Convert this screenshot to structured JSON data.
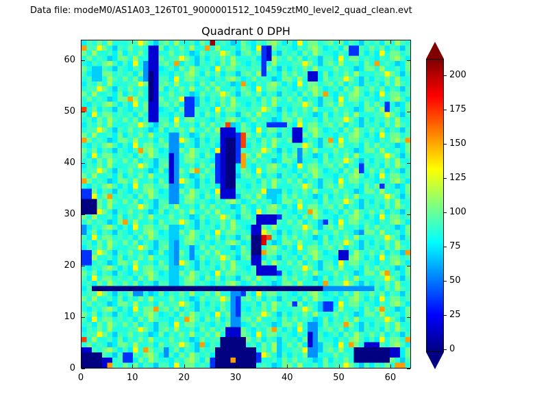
{
  "figure": {
    "data_file_label": "Data file: modeM0/AS1A03_126T01_9000001512_10459cztM0_level2_quad_clean.evt",
    "title": "Quadrant 0 DPH"
  },
  "axes": {
    "x_ticks": [
      0,
      10,
      20,
      30,
      40,
      50,
      60
    ],
    "y_ticks": [
      0,
      10,
      20,
      30,
      40,
      50,
      60
    ],
    "x_range": [
      0,
      64
    ],
    "y_range": [
      0,
      64
    ],
    "grid": false
  },
  "colorbar": {
    "ticks": [
      0,
      25,
      50,
      75,
      100,
      125,
      150,
      175,
      200
    ],
    "vmin": -2,
    "vmax": 212,
    "colormap": "jet",
    "extend": "both",
    "position": "right"
  },
  "chart_data": {
    "type": "heatmap",
    "title": "Quadrant 0 DPH",
    "xlabel": "",
    "ylabel": "",
    "x_range": [
      0,
      64
    ],
    "y_range": [
      0,
      64
    ],
    "grid_size": 64,
    "colormap": "jet",
    "clim": [
      -2,
      212
    ],
    "orientation": "rows indexed by y from bottom (y=0) to top (y=63); chars map to counts via value_key",
    "value_key": {
      "0": -5,
      "1": 15,
      "2": 35,
      "3": 55,
      "4": 68,
      "5": 76,
      "6": 85,
      "7": 93,
      "8": 102,
      "9": 112,
      "a": 132,
      "b": 152,
      "c": 172,
      "d": 192,
      "e": 205,
      "f": 212
    },
    "row_rule": "background texture: row y uses base_rows[y % 8], then patches overwrite cells",
    "base_rows": [
      "675869768685764775a68867657689756867645886966758677a864757686966",
      "75a68867675869766576897586857647869667586867645857686966677a8647",
      "86857647657689756758697675a68867677a8647576869666867645886966758",
      "6576897575a68867868576476758697657686966677a86478696675868676458",
      "6867645886966758677a864757686966675869768685764775a6886765768975",
      "869667585768696668676458677a864786857647675869766576897575a68867",
      "677a864768676458576869668696675875a68867657689756758697686857647",
      "57686966677a864786966758686764586576897575a688678685764767586976"
    ],
    "patches": [
      {
        "x": 13,
        "y": 48,
        "w": 2,
        "h": 15,
        "c": "1"
      },
      {
        "x": 13,
        "y": 52,
        "w": 1,
        "h": 6,
        "c": "0"
      },
      {
        "x": 12,
        "y": 56,
        "w": 1,
        "h": 4,
        "c": "3"
      },
      {
        "x": 20,
        "y": 49,
        "w": 2,
        "h": 4,
        "c": "2"
      },
      {
        "x": 35,
        "y": 57,
        "w": 1,
        "h": 6,
        "c": "2"
      },
      {
        "x": 36,
        "y": 60,
        "w": 1,
        "h": 3,
        "c": "1"
      },
      {
        "x": 25,
        "y": 63,
        "w": 1,
        "h": 1,
        "c": "e"
      },
      {
        "x": 24,
        "y": 62,
        "w": 1,
        "h": 1,
        "c": "b"
      },
      {
        "x": 44,
        "y": 56,
        "w": 2,
        "h": 2,
        "c": "1"
      },
      {
        "x": 52,
        "y": 61,
        "w": 2,
        "h": 2,
        "c": "2"
      },
      {
        "x": 59,
        "y": 50,
        "w": 1,
        "h": 2,
        "c": "2"
      },
      {
        "x": 18,
        "y": 59,
        "w": 1,
        "h": 1,
        "c": "b"
      },
      {
        "x": 31,
        "y": 55,
        "w": 1,
        "h": 1,
        "c": "b"
      },
      {
        "x": 47,
        "y": 53,
        "w": 1,
        "h": 1,
        "c": "b"
      },
      {
        "x": 57,
        "y": 59,
        "w": 1,
        "h": 1,
        "c": "b"
      },
      {
        "x": 9,
        "y": 52,
        "w": 1,
        "h": 1,
        "c": "b"
      },
      {
        "x": 2,
        "y": 56,
        "w": 2,
        "h": 3,
        "c": "4"
      },
      {
        "x": 0,
        "y": 62,
        "w": 1,
        "h": 1,
        "c": "b"
      },
      {
        "x": 0,
        "y": 50,
        "w": 1,
        "h": 1,
        "c": "c"
      },
      {
        "x": 0,
        "y": 44,
        "w": 1,
        "h": 1,
        "c": "b"
      },
      {
        "x": 28,
        "y": 47,
        "w": 1,
        "h": 1,
        "c": "c"
      },
      {
        "x": 27,
        "y": 46,
        "w": 1,
        "h": 1,
        "c": "b"
      },
      {
        "x": 36,
        "y": 47,
        "w": 4,
        "h": 1,
        "c": "2"
      },
      {
        "x": 27,
        "y": 33,
        "w": 3,
        "h": 14,
        "c": "1"
      },
      {
        "x": 28,
        "y": 35,
        "w": 2,
        "h": 10,
        "c": "0"
      },
      {
        "x": 26,
        "y": 36,
        "w": 1,
        "h": 6,
        "c": "2"
      },
      {
        "x": 30,
        "y": 40,
        "w": 1,
        "h": 6,
        "c": "2"
      },
      {
        "x": 31,
        "y": 43,
        "w": 1,
        "h": 3,
        "c": "c"
      },
      {
        "x": 31,
        "y": 39,
        "w": 1,
        "h": 3,
        "c": "b"
      },
      {
        "x": 17,
        "y": 32,
        "w": 2,
        "h": 14,
        "c": "3"
      },
      {
        "x": 17,
        "y": 36,
        "w": 1,
        "h": 6,
        "c": "1"
      },
      {
        "x": 41,
        "y": 44,
        "w": 2,
        "h": 3,
        "c": "1"
      },
      {
        "x": 42,
        "y": 40,
        "w": 1,
        "h": 3,
        "c": "3"
      },
      {
        "x": 0,
        "y": 30,
        "w": 3,
        "h": 3,
        "c": "0"
      },
      {
        "x": 0,
        "y": 33,
        "w": 2,
        "h": 2,
        "c": "2"
      },
      {
        "x": 54,
        "y": 38,
        "w": 1,
        "h": 2,
        "c": "2"
      },
      {
        "x": 58,
        "y": 35,
        "w": 1,
        "h": 1,
        "c": "2"
      },
      {
        "x": 11,
        "y": 42,
        "w": 1,
        "h": 1,
        "c": "b"
      },
      {
        "x": 22,
        "y": 38,
        "w": 1,
        "h": 1,
        "c": "b"
      },
      {
        "x": 48,
        "y": 44,
        "w": 1,
        "h": 1,
        "c": "b"
      },
      {
        "x": 5,
        "y": 33,
        "w": 1,
        "h": 1,
        "c": "b"
      },
      {
        "x": 63,
        "y": 44,
        "w": 1,
        "h": 1,
        "c": "b"
      },
      {
        "x": 0,
        "y": 36,
        "w": 1,
        "h": 1,
        "c": "b"
      },
      {
        "x": 36,
        "y": 33,
        "w": 2,
        "h": 2,
        "c": "4"
      },
      {
        "x": 34,
        "y": 28,
        "w": 4,
        "h": 2,
        "c": "1"
      },
      {
        "x": 33,
        "y": 26,
        "w": 2,
        "h": 2,
        "c": "1"
      },
      {
        "x": 33,
        "y": 22,
        "w": 2,
        "h": 4,
        "c": "0"
      },
      {
        "x": 33,
        "y": 20,
        "w": 2,
        "h": 2,
        "c": "1"
      },
      {
        "x": 34,
        "y": 18,
        "w": 4,
        "h": 2,
        "c": "1"
      },
      {
        "x": 38,
        "y": 18,
        "w": 1,
        "h": 1,
        "c": "2"
      },
      {
        "x": 38,
        "y": 29,
        "w": 1,
        "h": 1,
        "c": "2"
      },
      {
        "x": 35,
        "y": 24,
        "w": 1,
        "h": 2,
        "c": "d"
      },
      {
        "x": 36,
        "y": 25,
        "w": 1,
        "h": 1,
        "c": "c"
      },
      {
        "x": 35,
        "y": 22,
        "w": 1,
        "h": 1,
        "c": "b"
      },
      {
        "x": 17,
        "y": 16,
        "w": 2,
        "h": 12,
        "c": "4"
      },
      {
        "x": 18,
        "y": 20,
        "w": 1,
        "h": 5,
        "c": "3"
      },
      {
        "x": 21,
        "y": 21,
        "w": 1,
        "h": 3,
        "c": "3"
      },
      {
        "x": 0,
        "y": 20,
        "w": 2,
        "h": 3,
        "c": "2"
      },
      {
        "x": 0,
        "y": 26,
        "w": 1,
        "h": 2,
        "c": "3"
      },
      {
        "x": 50,
        "y": 21,
        "w": 2,
        "h": 2,
        "c": "1"
      },
      {
        "x": 47,
        "y": 28,
        "w": 1,
        "h": 1,
        "c": "2"
      },
      {
        "x": 54,
        "y": 26,
        "w": 1,
        "h": 1,
        "c": "3"
      },
      {
        "x": 44,
        "y": 30,
        "w": 1,
        "h": 1,
        "c": "b"
      },
      {
        "x": 8,
        "y": 28,
        "w": 1,
        "h": 1,
        "c": "b"
      },
      {
        "x": 59,
        "y": 18,
        "w": 1,
        "h": 1,
        "c": "b"
      },
      {
        "x": 63,
        "y": 22,
        "w": 1,
        "h": 1,
        "c": "b"
      },
      {
        "x": 2,
        "y": 15,
        "w": 45,
        "h": 1,
        "c": "0"
      },
      {
        "x": 47,
        "y": 15,
        "w": 10,
        "h": 1,
        "c": "3"
      },
      {
        "x": 47,
        "y": 16,
        "w": 1,
        "h": 1,
        "c": "b"
      },
      {
        "x": 10,
        "y": 14,
        "w": 2,
        "h": 1,
        "c": "3"
      },
      {
        "x": 30,
        "y": 14,
        "w": 2,
        "h": 1,
        "c": "2"
      },
      {
        "x": 26,
        "y": 0,
        "w": 8,
        "h": 4,
        "c": "0"
      },
      {
        "x": 27,
        "y": 4,
        "w": 5,
        "h": 2,
        "c": "0"
      },
      {
        "x": 28,
        "y": 6,
        "w": 3,
        "h": 2,
        "c": "1"
      },
      {
        "x": 29,
        "y": 1,
        "w": 1,
        "h": 1,
        "c": "b"
      },
      {
        "x": 25,
        "y": 0,
        "w": 1,
        "h": 2,
        "c": "2"
      },
      {
        "x": 34,
        "y": 1,
        "w": 1,
        "h": 2,
        "c": "2"
      },
      {
        "x": 29,
        "y": 8,
        "w": 2,
        "h": 7,
        "c": "3"
      },
      {
        "x": 30,
        "y": 10,
        "w": 1,
        "h": 4,
        "c": "2"
      },
      {
        "x": 0,
        "y": 0,
        "w": 4,
        "h": 3,
        "c": "0"
      },
      {
        "x": 0,
        "y": 3,
        "w": 2,
        "h": 1,
        "c": "1"
      },
      {
        "x": 4,
        "y": 0,
        "w": 2,
        "h": 2,
        "c": "1"
      },
      {
        "x": 0,
        "y": 5,
        "w": 1,
        "h": 1,
        "c": "c"
      },
      {
        "x": 5,
        "y": 0,
        "w": 1,
        "h": 1,
        "c": "b"
      },
      {
        "x": 8,
        "y": 1,
        "w": 2,
        "h": 2,
        "c": "2"
      },
      {
        "x": 12,
        "y": 3,
        "w": 1,
        "h": 1,
        "c": "b"
      },
      {
        "x": 16,
        "y": 2,
        "w": 1,
        "h": 2,
        "c": "3"
      },
      {
        "x": 53,
        "y": 1,
        "w": 7,
        "h": 3,
        "c": "0"
      },
      {
        "x": 55,
        "y": 4,
        "w": 3,
        "h": 1,
        "c": "1"
      },
      {
        "x": 60,
        "y": 2,
        "w": 2,
        "h": 2,
        "c": "1"
      },
      {
        "x": 52,
        "y": 4,
        "w": 1,
        "h": 1,
        "c": "b"
      },
      {
        "x": 61,
        "y": 0,
        "w": 2,
        "h": 1,
        "c": "b"
      },
      {
        "x": 44,
        "y": 2,
        "w": 2,
        "h": 7,
        "c": "3"
      },
      {
        "x": 44,
        "y": 4,
        "w": 1,
        "h": 3,
        "c": "1"
      },
      {
        "x": 47,
        "y": 11,
        "w": 2,
        "h": 2,
        "c": "2"
      },
      {
        "x": 41,
        "y": 12,
        "w": 1,
        "h": 1,
        "c": "2"
      },
      {
        "x": 20,
        "y": 9,
        "w": 1,
        "h": 1,
        "c": "b"
      },
      {
        "x": 37,
        "y": 7,
        "w": 1,
        "h": 1,
        "c": "b"
      },
      {
        "x": 51,
        "y": 8,
        "w": 1,
        "h": 1,
        "c": "b"
      },
      {
        "x": 58,
        "y": 11,
        "w": 1,
        "h": 1,
        "c": "b"
      },
      {
        "x": 63,
        "y": 5,
        "w": 1,
        "h": 1,
        "c": "b"
      },
      {
        "x": 14,
        "y": 11,
        "w": 1,
        "h": 1,
        "c": "b"
      },
      {
        "x": 23,
        "y": 4,
        "w": 1,
        "h": 1,
        "c": "b"
      },
      {
        "x": 38,
        "y": 2,
        "w": 1,
        "h": 3,
        "c": "4"
      }
    ]
  }
}
